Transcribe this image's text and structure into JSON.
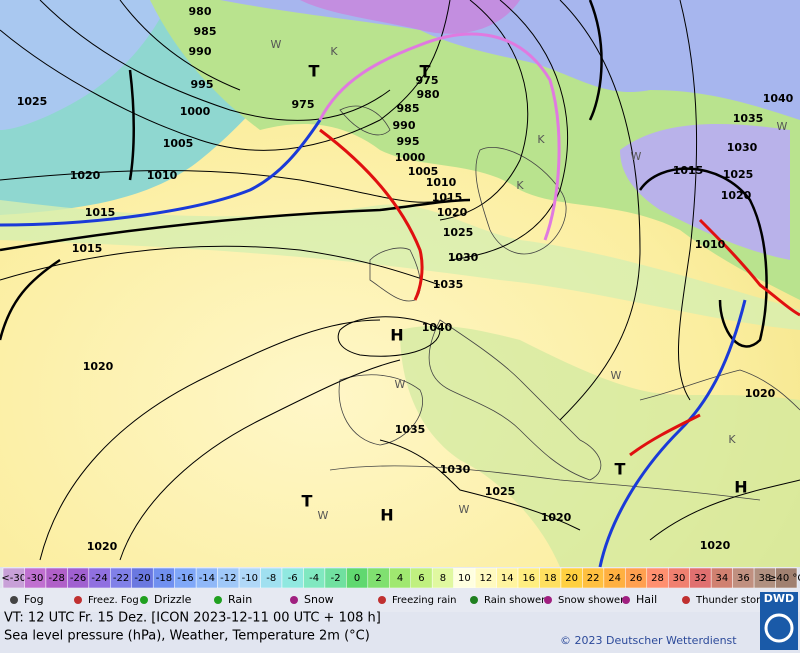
{
  "map": {
    "pressure_labels": [
      "980",
      "985",
      "990",
      "995",
      "1000",
      "1005",
      "1010",
      "975",
      "975",
      "980",
      "985",
      "990",
      "995",
      "1000",
      "1005",
      "1010",
      "1015",
      "1020",
      "1025",
      "1030",
      "1035",
      "1040",
      "1035",
      "1030",
      "1025",
      "1020",
      "1020",
      "1020",
      "1020",
      "1020",
      "1015",
      "1015",
      "1020",
      "1025",
      "1040",
      "1035",
      "1030",
      "1025",
      "1020",
      "1015",
      "1010"
    ],
    "centers": [
      "T",
      "T",
      "T",
      "T",
      "H",
      "H",
      "H"
    ],
    "air_mass_labels": [
      "W",
      "W",
      "W",
      "W",
      "W",
      "K",
      "K",
      "K",
      "K",
      "W",
      "W"
    ]
  },
  "temperature_scale": {
    "labels": [
      "<-30",
      "-30",
      "-28",
      "-26",
      "-24",
      "-22",
      "-20",
      "-18",
      "-16",
      "-14",
      "-12",
      "-10",
      "-8",
      "-6",
      "-4",
      "-2",
      "0",
      "2",
      "4",
      "6",
      "8",
      "10",
      "12",
      "14",
      "16",
      "18",
      "20",
      "22",
      "24",
      "26",
      "28",
      "30",
      "32",
      "34",
      "36",
      "38",
      "≥40 °C"
    ]
  },
  "weather_legend": [
    "Fog",
    "Freez. Fog",
    "Drizzle",
    "Rain",
    "Snow",
    "Freezing rain",
    "Rain shower",
    "Snow shower",
    "Hail",
    "Thunder storm"
  ],
  "footer": {
    "valid_time": "VT: 12 UTC Fr.  15 Dez. [ICON 2023-12-11  00 UTC + 108 h]",
    "description": "Sea level pressure (hPa), Weather, Temperature 2m (°C)",
    "copyright": "© 2023 Deutscher Wetterdienst",
    "logo": "DWD"
  }
}
